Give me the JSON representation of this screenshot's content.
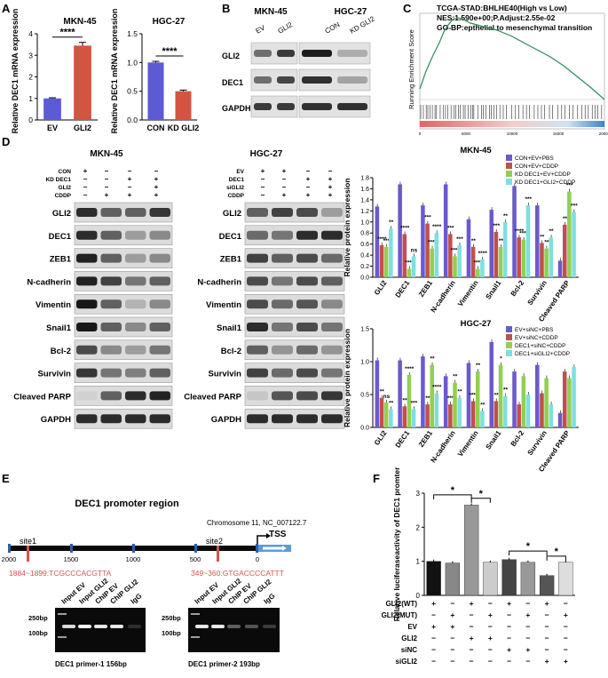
{
  "panels": {
    "A": "A",
    "B": "B",
    "C": "C",
    "D": "D",
    "E": "E",
    "F": "F"
  },
  "panelA": {
    "left": {
      "title": "MKN-45",
      "ylabel": "Relative DEC1 mRNA expression",
      "ylim": [
        0,
        4
      ],
      "yticks": [
        "0",
        "1",
        "2",
        "3",
        "4"
      ],
      "categories": [
        "EV",
        "GLI2"
      ],
      "values": [
        1.0,
        3.45
      ],
      "errors": [
        0.03,
        0.15
      ],
      "colors": [
        "#5b5bd6",
        "#d35440"
      ],
      "significance": "****"
    },
    "right": {
      "title": "HGC-27",
      "ylabel": "Relative DEC1 mRNA expression",
      "ylim": [
        0,
        1.5
      ],
      "yticks": [
        "0.0",
        "0.5",
        "1.0",
        "1.5"
      ],
      "categories": [
        "CON",
        "KD GLI2"
      ],
      "values": [
        1.0,
        0.5
      ],
      "errors": [
        0.02,
        0.02
      ],
      "colors": [
        "#5b5bd6",
        "#d35440"
      ],
      "significance": "****"
    }
  },
  "panelB": {
    "title_left": "MKN-45",
    "title_right": "HGC-27",
    "lanes_left": [
      "EV",
      "GLI2"
    ],
    "lanes_right": [
      "CON",
      "KD GLI2"
    ],
    "rows": [
      "GLI2",
      "DEC1",
      "GAPDH"
    ]
  },
  "panelC": {
    "line1": "TCGA-STAD:BHLHE40(High vs Low)",
    "line2": "NES:1.590e+00;P.Adjust:2.55e-02",
    "line3": "GO-BP:epthelial to mesenchymal transition",
    "ylabel": "Running Enrichment Score",
    "xticks": [
      "0",
      "5000",
      "10000",
      "15000",
      "20000"
    ]
  },
  "panelD": {
    "blotLeft": {
      "title": "MKN-45",
      "conditions": [
        {
          "label": "CON",
          "signs": [
            "+",
            "−",
            "−",
            "−"
          ]
        },
        {
          "label": "KD DEC1",
          "signs": [
            "−",
            "−",
            "+",
            "+"
          ]
        },
        {
          "label": "GLI2",
          "signs": [
            "−",
            "−",
            "−",
            "+"
          ]
        },
        {
          "label": "CDDP",
          "signs": [
            "−",
            "+",
            "+",
            "+"
          ]
        }
      ]
    },
    "blotRight": {
      "title": "HGC-27",
      "conditions": [
        {
          "label": "EV",
          "signs": [
            "+",
            "+",
            "−",
            "−"
          ]
        },
        {
          "label": "DEC1",
          "signs": [
            "−",
            "−",
            "+",
            "+"
          ]
        },
        {
          "label": "siGLI2",
          "signs": [
            "−",
            "−",
            "−",
            "+"
          ]
        },
        {
          "label": "CDDP",
          "signs": [
            "−",
            "+",
            "+",
            "+"
          ]
        }
      ]
    },
    "rows": [
      "GLI2",
      "DEC1",
      "ZEB1",
      "N-cadherin",
      "Vimentin",
      "Snail1",
      "Bcl-2",
      "Survivin",
      "Cleaved PARP",
      "GAPDH"
    ]
  },
  "chart_data": [
    {
      "type": "bar",
      "title": "MKN-45",
      "ylabel": "Relative protein expression",
      "ylim": [
        0,
        1.8
      ],
      "yticks": [
        "0.0",
        "0.2",
        "0.4",
        "0.6",
        "0.8",
        "1.0",
        "1.2",
        "1.4",
        "1.6",
        "1.8"
      ],
      "categories": [
        "GLI2",
        "DEC1",
        "ZEB1",
        "N-cadherin",
        "Vimentin",
        "Snail1",
        "Bcl-2",
        "Survivin",
        "Cleaved PARP"
      ],
      "series": [
        {
          "name": "CON+EV+PBS",
          "color": "#6a5acd",
          "values": [
            1.28,
            1.68,
            1.3,
            1.68,
            1.05,
            1.22,
            1.65,
            1.3,
            0.3
          ]
        },
        {
          "name": "CON+EV+CDDP",
          "color": "#c0504d",
          "values": [
            0.58,
            0.78,
            0.97,
            0.78,
            0.55,
            0.82,
            0.72,
            0.62,
            0.95
          ]
        },
        {
          "name": "KD DEC1+EV+CDDP",
          "color": "#92d050",
          "values": [
            0.55,
            0.15,
            0.52,
            0.38,
            0.15,
            0.55,
            0.68,
            0.52,
            1.55
          ]
        },
        {
          "name": "KD DEC1+GLI2+CDDP",
          "color": "#7fdfe0",
          "values": [
            0.88,
            0.38,
            0.8,
            0.58,
            0.32,
            1.0,
            1.3,
            0.72,
            1.18
          ]
        }
      ],
      "significance": [
        "****",
        "***",
        "**",
        "****",
        "****",
        "ns",
        "***",
        "****",
        "****",
        "***",
        "****",
        "***",
        "**",
        "****",
        "****",
        "***",
        "**",
        "**",
        "****",
        "****",
        "***",
        "**",
        "**",
        "**",
        "**",
        "***",
        "***"
      ],
      "legend": "top-right"
    },
    {
      "type": "bar",
      "title": "HGC-27",
      "ylabel": "Relative protein expression",
      "ylim": [
        0,
        1.5
      ],
      "yticks": [
        "0.0",
        "0.5",
        "1.0",
        "1.5"
      ],
      "categories": [
        "GLI2",
        "DEC1",
        "ZEB1",
        "N-cadherin",
        "Vimentin",
        "Snail1",
        "Bcl-2",
        "Survivin",
        "Cleaved PARP"
      ],
      "series": [
        {
          "name": "EV+siNC+PBS",
          "color": "#6a5acd",
          "values": [
            1.02,
            1.02,
            1.08,
            0.78,
            0.98,
            1.3,
            0.85,
            0.95,
            0.22
          ]
        },
        {
          "name": "EV+siNC+CDDP",
          "color": "#c0504d",
          "values": [
            0.45,
            0.32,
            0.35,
            0.35,
            0.4,
            0.4,
            0.35,
            0.52,
            0.85
          ]
        },
        {
          "name": "DEC1+siNC+CDDP",
          "color": "#92d050",
          "values": [
            0.38,
            0.8,
            0.95,
            0.68,
            0.85,
            0.95,
            0.78,
            0.75,
            0.75
          ]
        },
        {
          "name": "DEC1+siGLI2+CDDP",
          "color": "#7fdfe0",
          "values": [
            0.28,
            0.28,
            0.52,
            0.45,
            0.25,
            0.48,
            0.5,
            0.35,
            0.92
          ]
        }
      ],
      "significance": [
        "**",
        "ns",
        "**",
        "**",
        "****",
        "***",
        "**",
        "**",
        "****",
        "***",
        "**",
        "**",
        "****",
        "**",
        "**",
        "**",
        "*",
        "**"
      ],
      "legend": "top-right"
    },
    {
      "type": "bar",
      "ylabel": "Relative luciferaseactivity of DEC1 promter",
      "ylim": [
        0,
        3
      ],
      "yticks": [
        "0",
        "1",
        "2",
        "3"
      ],
      "categories": [
        "1",
        "2",
        "3",
        "4",
        "5",
        "6",
        "7",
        "8"
      ],
      "values": [
        1.0,
        0.95,
        2.65,
        0.97,
        1.05,
        0.97,
        0.58,
        0.97
      ],
      "colors": [
        "#111111",
        "#888888",
        "#999999",
        "#cccccc",
        "#444444",
        "#999999",
        "#555555",
        "#dddddd"
      ],
      "rows": [
        {
          "label": "GLI2(WT)",
          "signs": [
            "+",
            "−",
            "+",
            "−",
            "+",
            "−",
            "+",
            "−"
          ]
        },
        {
          "label": "GLI2(MUT)",
          "signs": [
            "−",
            "+",
            "−",
            "+",
            "−",
            "+",
            "−",
            "+"
          ]
        },
        {
          "label": "EV",
          "signs": [
            "+",
            "+",
            "−",
            "−",
            "−",
            "−",
            "−",
            "−"
          ]
        },
        {
          "label": "GLI2",
          "signs": [
            "−",
            "−",
            "+",
            "+",
            "−",
            "−",
            "−",
            "−"
          ]
        },
        {
          "label": "siNC",
          "signs": [
            "−",
            "−",
            "−",
            "−",
            "+",
            "+",
            "−",
            "−"
          ]
        },
        {
          "label": "siGLI2",
          "signs": [
            "−",
            "−",
            "−",
            "−",
            "−",
            "−",
            "+",
            "+"
          ]
        }
      ],
      "significance": [
        "*",
        "*",
        "*",
        "*"
      ]
    }
  ],
  "panelE": {
    "title": "DEC1 promoter region",
    "chrom": "Chromosome 11, NC_007122.7",
    "site1": "site1",
    "site2": "site2",
    "tss": "TSS",
    "ticks": [
      "2000",
      "1500",
      "1000",
      "500",
      "0"
    ],
    "seq1": "1884~1899:TCGCCCACGTTA",
    "seq2": "349~360:GTGACCCCATTT",
    "lanes": [
      "Input EV",
      "Input GLI2",
      "ChIP EV",
      "ChIP GLI2",
      "IgG"
    ],
    "ladder_top": "250bp",
    "ladder_bottom": "100bp",
    "caption1": "DEC1 primer-1  156bp",
    "caption2": "DEC1 primer-2  193bp"
  }
}
